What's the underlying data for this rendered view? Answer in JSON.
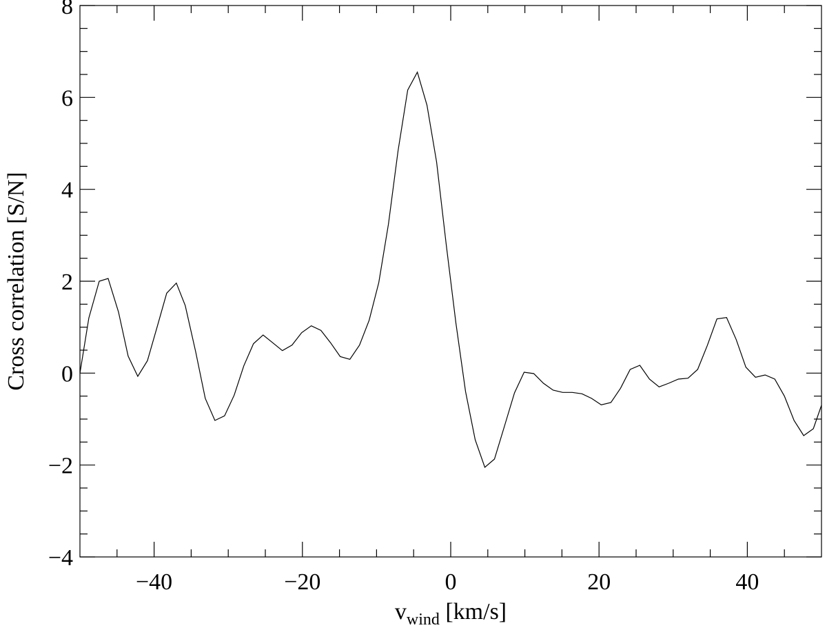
{
  "chart_data": {
    "type": "line",
    "xlabel": {
      "main": "v",
      "sub": "wind",
      "rest": " [km/s]"
    },
    "ylabel": "Cross correlation [S/N]",
    "xlim": [
      -50,
      50
    ],
    "ylim": [
      -4,
      8
    ],
    "xticks": [
      {
        "value": -40,
        "label": "−40"
      },
      {
        "value": -20,
        "label": "−20"
      },
      0,
      20,
      40
    ],
    "yticks": [
      {
        "value": -4,
        "label": "−4"
      },
      {
        "value": -2,
        "label": "−2"
      },
      0,
      2,
      4,
      6,
      8
    ],
    "xminorticks": [
      -45,
      -35,
      -30,
      -25,
      -15,
      -10,
      -5,
      5,
      10,
      15,
      25,
      30,
      35,
      45
    ],
    "yminorticks": [
      -3.5,
      -3,
      -2.5,
      -1.5,
      -1,
      -0.5,
      0.5,
      1,
      1.5,
      2.5,
      3,
      3.5,
      4.5,
      5,
      5.5,
      6.5,
      7,
      7.5
    ],
    "color": "#000000",
    "series": [
      {
        "color": "#000000",
        "x": [
          -50,
          -48.8,
          -47.4,
          -46.2,
          -44.8,
          -43.5,
          -42.2,
          -40.9,
          -39.6,
          -38.3,
          -37.0,
          -35.8,
          -34.4,
          -33.1,
          -31.8,
          -30.5,
          -29.2,
          -27.9,
          -26.6,
          -25.3,
          -24.0,
          -22.7,
          -21.4,
          -20.1,
          -18.8,
          -17.5,
          -16.2,
          -14.9,
          -13.6,
          -12.3,
          -11.0,
          -9.7,
          -8.4,
          -7.1,
          -5.8,
          -4.5,
          -3.2,
          -1.9,
          -0.6,
          0.7,
          2.0,
          3.3,
          4.6,
          5.9,
          7.2,
          8.6,
          9.9,
          11.2,
          12.5,
          13.8,
          15.1,
          16.4,
          17.7,
          19.0,
          20.3,
          21.6,
          22.9,
          24.2,
          25.5,
          26.8,
          28.1,
          29.4,
          30.7,
          32.0,
          33.3,
          34.6,
          35.9,
          37.2,
          38.5,
          39.8,
          41.1,
          42.4,
          43.7,
          45.0,
          46.3,
          47.6,
          48.9,
          50
        ],
        "values": [
          0.0,
          1.2,
          2.0,
          2.06,
          1.33,
          0.37,
          -0.07,
          0.27,
          1.0,
          1.74,
          1.96,
          1.47,
          0.47,
          -0.55,
          -1.03,
          -0.93,
          -0.48,
          0.16,
          0.64,
          0.83,
          0.66,
          0.49,
          0.61,
          0.88,
          1.03,
          0.93,
          0.66,
          0.36,
          0.3,
          0.61,
          1.15,
          1.97,
          3.24,
          4.84,
          6.16,
          6.55,
          5.83,
          4.59,
          2.79,
          1.09,
          -0.4,
          -1.45,
          -2.05,
          -1.87,
          -1.18,
          -0.43,
          0.02,
          -0.01,
          -0.22,
          -0.37,
          -0.42,
          -0.42,
          -0.45,
          -0.55,
          -0.69,
          -0.64,
          -0.33,
          0.08,
          0.17,
          -0.13,
          -0.3,
          -0.22,
          -0.13,
          -0.11,
          0.08,
          0.6,
          1.18,
          1.21,
          0.73,
          0.13,
          -0.09,
          -0.04,
          -0.13,
          -0.5,
          -1.03,
          -1.36,
          -1.21,
          -0.7
        ]
      }
    ]
  }
}
